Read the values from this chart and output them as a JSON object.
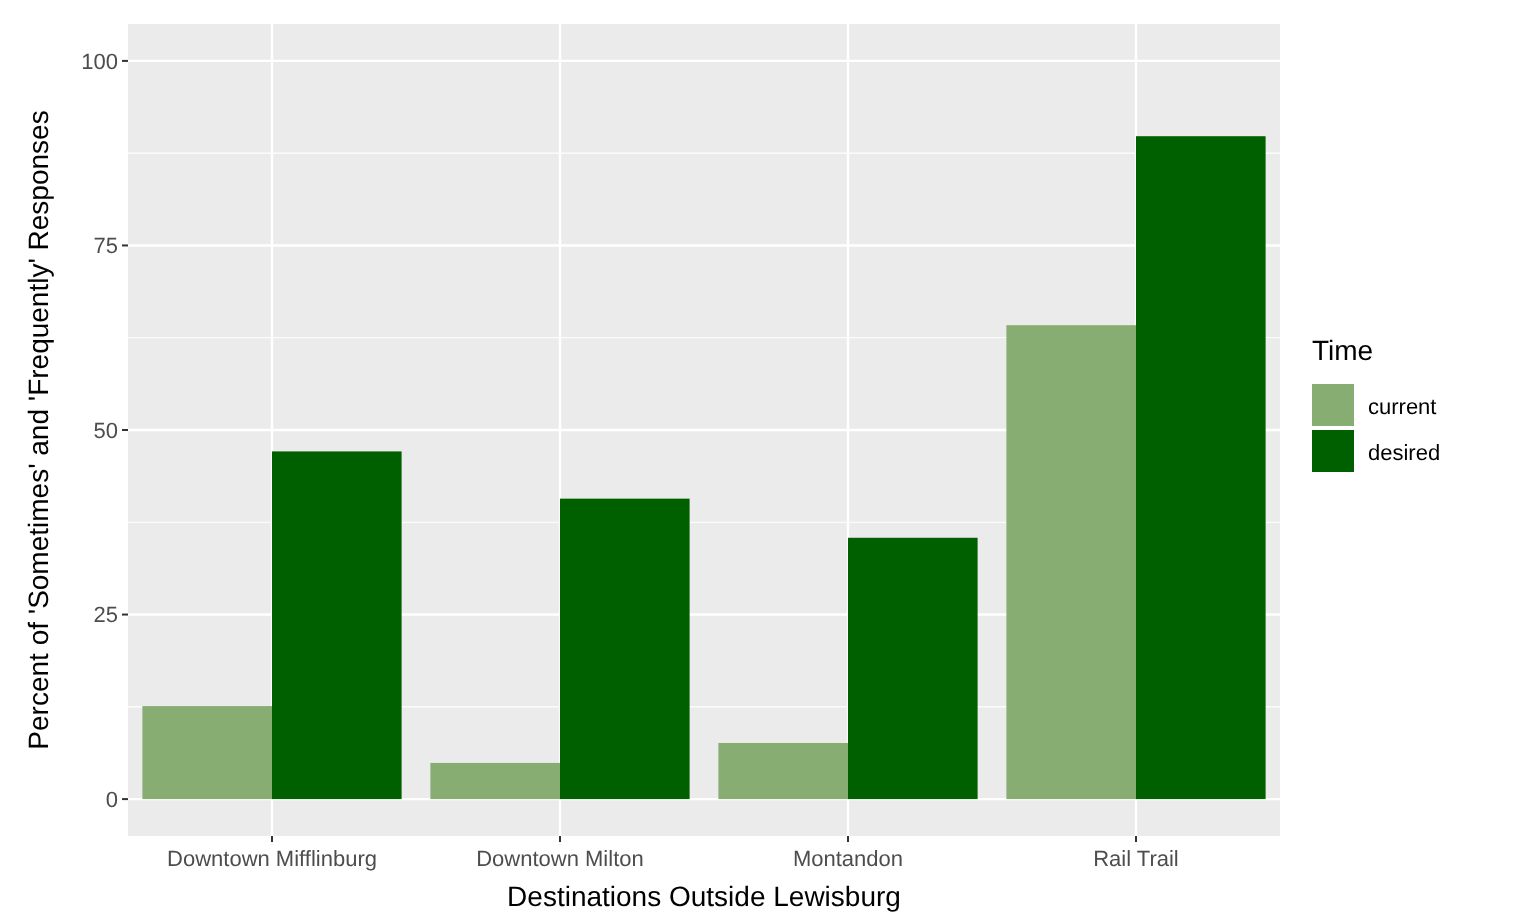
{
  "chart_data": {
    "type": "bar",
    "xlabel": "Destinations Outside Lewisburg",
    "ylabel": "Percent of 'Sometimes' and 'Frequently' Responses",
    "legend_title": "Time",
    "categories": [
      "Downtown Mifflinburg",
      "Downtown Milton",
      "Montandon",
      "Rail Trail"
    ],
    "series": [
      {
        "name": "current",
        "color": "#88ad73",
        "values": [
          12.6,
          4.9,
          7.6,
          64.2
        ]
      },
      {
        "name": "desired",
        "color": "#006000",
        "values": [
          47.1,
          40.7,
          35.4,
          89.8
        ]
      }
    ],
    "ylim": [
      -5,
      105
    ],
    "yticks": [
      0,
      25,
      50,
      75,
      100
    ],
    "grid": true,
    "legend": "right"
  }
}
